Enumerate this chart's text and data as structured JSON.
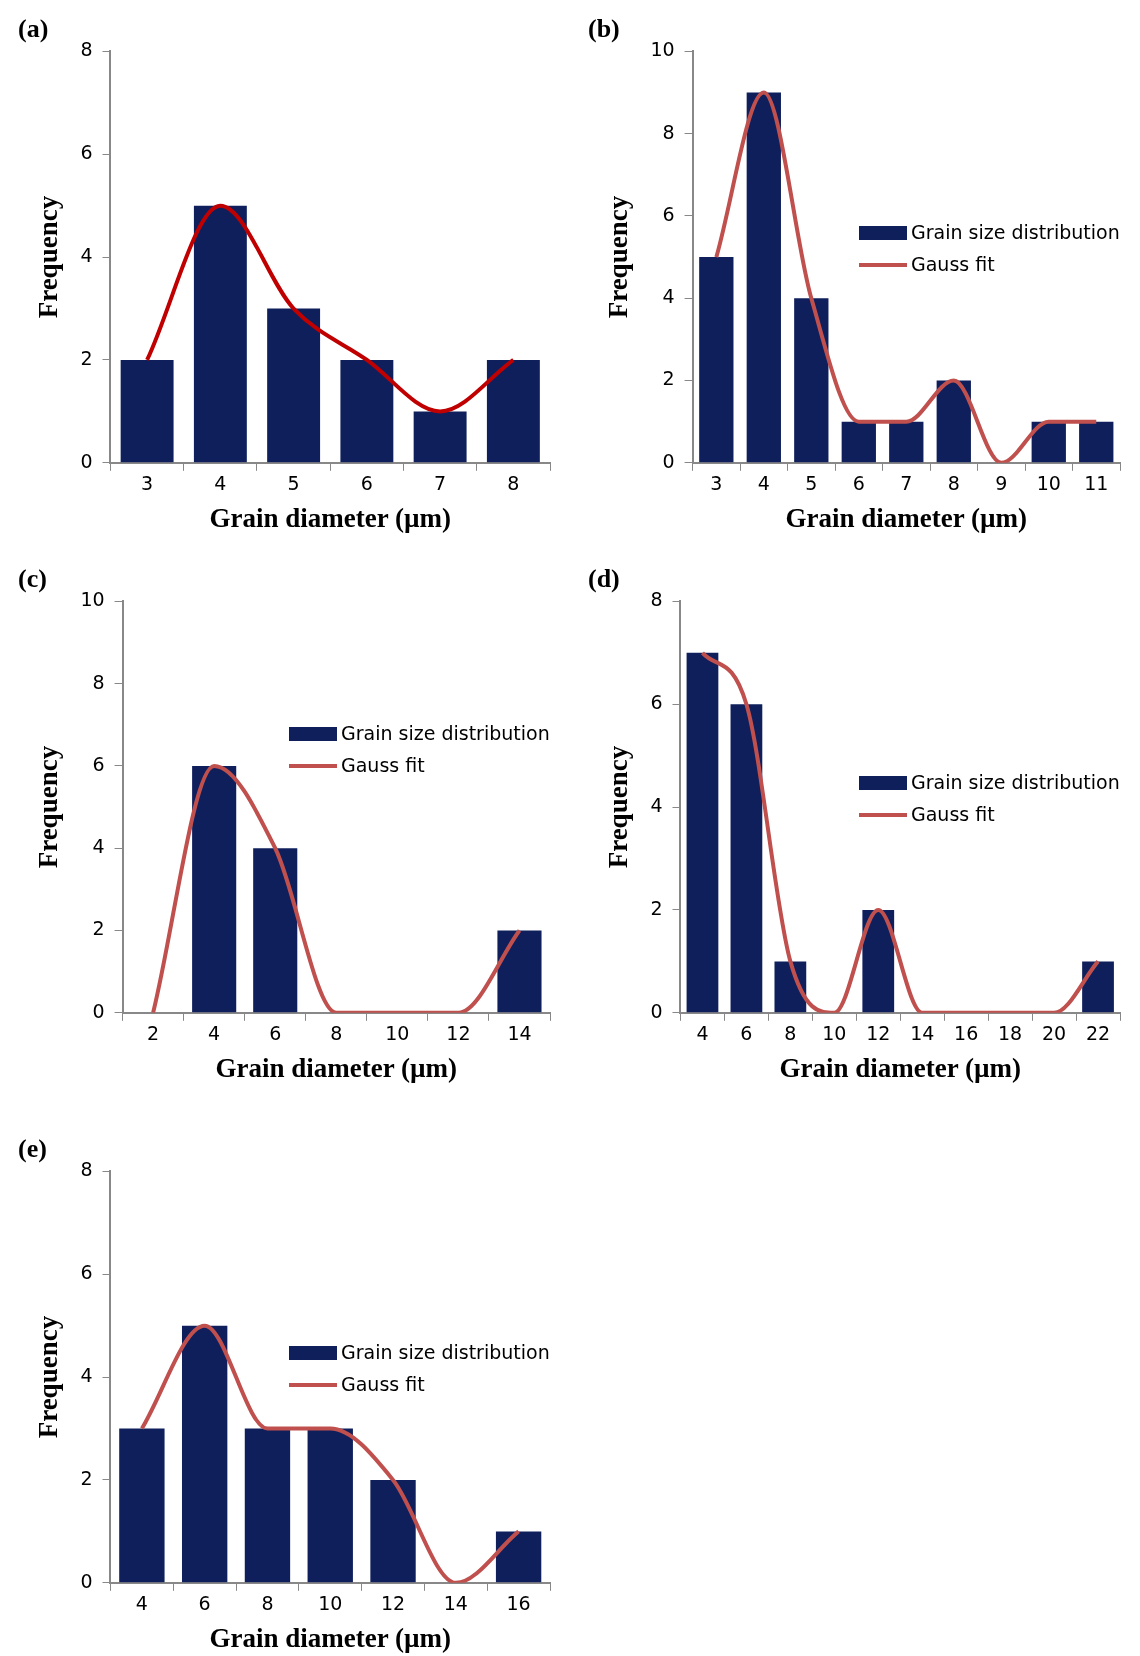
{
  "chart_data": [
    {
      "type": "bar",
      "title": "(a)",
      "xlabel": "Grain diameter (µm)",
      "ylabel": "Frequency",
      "categories": [
        "3",
        "4",
        "5",
        "6",
        "7",
        "8"
      ],
      "ylim": [
        0,
        8
      ],
      "yticks": [
        0,
        2,
        4,
        6,
        8
      ],
      "grid": false,
      "legend": false,
      "marker": "none",
      "series": [
        {
          "color": "#0f1f5c",
          "values": [
            2,
            5,
            3,
            2,
            1,
            2
          ]
        },
        {
          "type": "line",
          "color": "#c00000",
          "values": [
            2,
            5,
            3,
            2,
            1,
            2
          ]
        }
      ]
    },
    {
      "type": "bar",
      "title": "(b)",
      "xlabel": "Grain diameter (µm)",
      "ylabel": "Frequency",
      "categories": [
        "3",
        "4",
        "5",
        "6",
        "7",
        "8",
        "9",
        "10",
        "11"
      ],
      "ylim": [
        0,
        10
      ],
      "yticks": [
        0,
        2,
        4,
        6,
        8,
        10
      ],
      "grid": false,
      "legend": "right",
      "marker": "none",
      "series": [
        {
          "name": "Grain size distribution",
          "color": "#0f1f5c",
          "values": [
            5,
            9,
            4,
            1,
            1,
            2,
            0,
            1,
            1
          ]
        },
        {
          "type": "line",
          "name": "Gauss fit",
          "color": "#c0504d",
          "values": [
            5,
            9,
            4,
            1,
            1,
            2,
            0,
            1,
            1
          ]
        }
      ]
    },
    {
      "type": "bar",
      "title": "(c)",
      "xlabel": "Grain diameter (µm)",
      "ylabel": "Frequency",
      "categories": [
        "2",
        "4",
        "6",
        "8",
        "10",
        "12",
        "14"
      ],
      "ylim": [
        0,
        10
      ],
      "yticks": [
        0,
        2,
        4,
        6,
        8,
        10
      ],
      "grid": false,
      "legend": "top right",
      "marker": "none",
      "series": [
        {
          "name": "Grain size distribution",
          "color": "#0f1f5c",
          "values": [
            0,
            6,
            4,
            0,
            0,
            0,
            2
          ]
        },
        {
          "type": "line",
          "name": "Gauss fit",
          "color": "#c0504d",
          "values": [
            0,
            6,
            4,
            0,
            0,
            0,
            2
          ]
        }
      ]
    },
    {
      "type": "bar",
      "title": "(d)",
      "xlabel": "Grain diameter (µm)",
      "ylabel": "Frequency",
      "categories": [
        "4",
        "6",
        "8",
        "10",
        "12",
        "14",
        "16",
        "18",
        "20",
        "22"
      ],
      "ylim": [
        0,
        8
      ],
      "yticks": [
        0,
        2,
        4,
        6,
        8
      ],
      "grid": false,
      "legend": "right",
      "marker": "none",
      "series": [
        {
          "name": "Grain size distribution",
          "color": "#0f1f5c",
          "values": [
            7,
            6,
            1,
            0,
            2,
            0,
            0,
            0,
            0,
            1
          ]
        },
        {
          "type": "line",
          "name": "Gauss fit",
          "color": "#c0504d",
          "values": [
            7,
            6,
            1,
            0,
            2,
            0,
            0,
            0,
            0,
            1
          ]
        }
      ]
    },
    {
      "type": "bar",
      "title": "(e)",
      "xlabel": "Grain diameter (µm)",
      "ylabel": "Frequency",
      "categories": [
        "4",
        "6",
        "8",
        "10",
        "12",
        "14",
        "16"
      ],
      "ylim": [
        0,
        8
      ],
      "yticks": [
        0,
        2,
        4,
        6,
        8
      ],
      "grid": false,
      "legend": "right",
      "marker": "none",
      "series": [
        {
          "name": "Grain size distribution",
          "color": "#0f1f5c",
          "values": [
            3,
            5,
            3,
            3,
            2,
            0,
            1
          ]
        },
        {
          "type": "line",
          "name": "Gauss fit",
          "color": "#c0504d",
          "values": [
            3,
            5,
            3,
            3,
            2,
            0,
            1
          ]
        }
      ]
    }
  ]
}
